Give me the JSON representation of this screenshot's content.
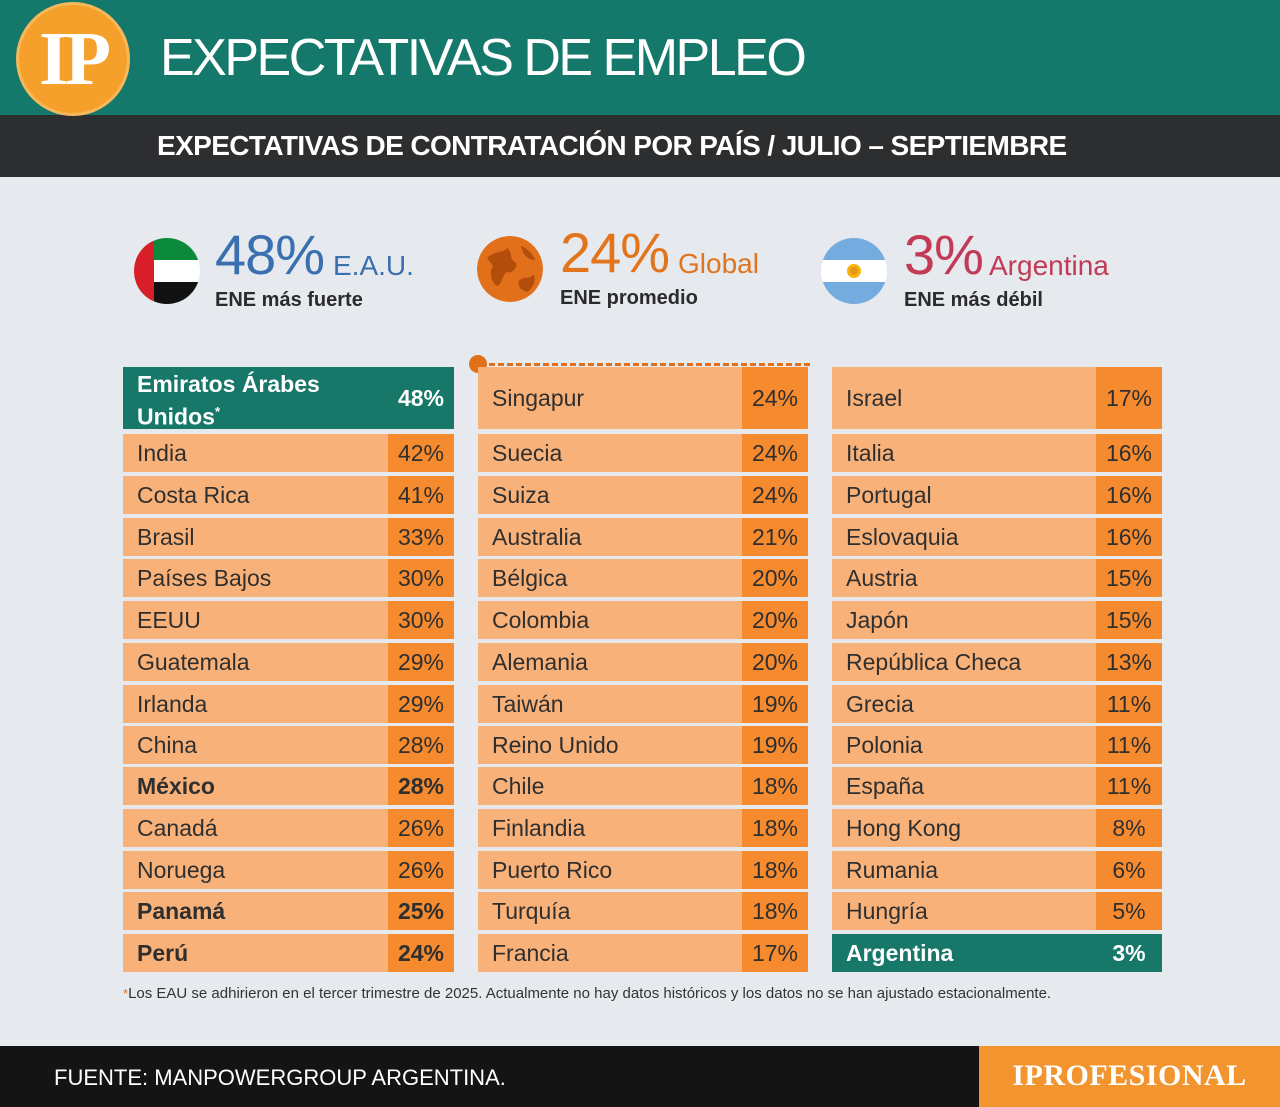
{
  "header": {
    "logo": "IP",
    "title": "EXPECTATIVAS DE EMPLEO",
    "subtitle": "EXPECTATIVAS DE CONTRATACIÓN POR PAÍS / JULIO – SEPTIEMBRE"
  },
  "stats": [
    {
      "value": "48%",
      "name": "E.A.U.",
      "desc": "ENE más fuerte",
      "color": "#3a6fb0",
      "icon": "uae-flag-icon"
    },
    {
      "value": "24%",
      "name": "Global",
      "desc": "ENE promedio",
      "color": "#e2741c",
      "icon": "globe-icon"
    },
    {
      "value": "3%",
      "name": "Argentina",
      "desc": "ENE más débil",
      "color": "#c23a55",
      "icon": "argentina-flag-icon"
    }
  ],
  "chart_data": {
    "type": "table",
    "columns": [
      [
        {
          "country": "Emiratos Árabes Unidos",
          "sup": "*",
          "value": "48%"
        },
        {
          "country": "India",
          "value": "42%"
        },
        {
          "country": "Costa Rica",
          "value": "41%"
        },
        {
          "country": "Brasil",
          "value": "33%"
        },
        {
          "country": "Países Bajos",
          "value": "30%"
        },
        {
          "country": "EEUU",
          "value": "30%"
        },
        {
          "country": "Guatemala",
          "value": "29%"
        },
        {
          "country": "Irlanda",
          "value": "29%"
        },
        {
          "country": "China",
          "value": "28%"
        },
        {
          "country": "México",
          "value": "28%"
        },
        {
          "country": "Canadá",
          "value": "26%"
        },
        {
          "country": "Noruega",
          "value": "26%"
        },
        {
          "country": "Panamá",
          "value": "25%"
        },
        {
          "country": "Perú",
          "value": "24%"
        }
      ],
      [
        {
          "country": "Singapur",
          "value": "24%"
        },
        {
          "country": "Suecia",
          "value": "24%"
        },
        {
          "country": "Suiza",
          "value": "24%"
        },
        {
          "country": "Australia",
          "value": "21%"
        },
        {
          "country": "Bélgica",
          "value": "20%"
        },
        {
          "country": "Colombia",
          "value": "20%"
        },
        {
          "country": "Alemania",
          "value": "20%"
        },
        {
          "country": "Taiwán",
          "value": "19%"
        },
        {
          "country": "Reino Unido",
          "value": "19%"
        },
        {
          "country": "Chile",
          "value": "18%"
        },
        {
          "country": "Finlandia",
          "value": "18%"
        },
        {
          "country": "Puerto Rico",
          "value": "18%"
        },
        {
          "country": "Turquía",
          "value": "18%"
        },
        {
          "country": "Francia",
          "value": "17%"
        }
      ],
      [
        {
          "country": "Israel",
          "value": "17%"
        },
        {
          "country": "Italia",
          "value": "16%"
        },
        {
          "country": "Portugal",
          "value": "16%"
        },
        {
          "country": "Eslovaquia",
          "value": "16%"
        },
        {
          "country": "Austria",
          "value": "15%"
        },
        {
          "country": "Japón",
          "value": "15%"
        },
        {
          "country": "República Checa",
          "value": "13%"
        },
        {
          "country": "Grecia",
          "value": "11%"
        },
        {
          "country": "Polonia",
          "value": "11%"
        },
        {
          "country": "España",
          "value": "11%"
        },
        {
          "country": "Hong Kong",
          "value": "8%"
        },
        {
          "country": "Rumania",
          "value": "6%"
        },
        {
          "country": "Hungría",
          "value": "5%"
        },
        {
          "country": "Argentina",
          "value": "3%"
        }
      ]
    ],
    "highlighted": [
      "Emiratos Árabes Unidos",
      "Argentina"
    ],
    "bold": [
      "México",
      "Panamá",
      "Perú"
    ],
    "global_marker_before": "Singapur"
  },
  "note": {
    "star": "*",
    "text": "Los EAU se adhirieron en el tercer trimestre de 2025. Actualmente no hay datos históricos y los datos no se han ajustado estacionalmente."
  },
  "footer": {
    "source": "FUENTE: MANPOWERGROUP ARGENTINA.",
    "brand": "IPROFESIONAL"
  },
  "colors": {
    "teal": "#17786a",
    "orange": "#f58a2e",
    "light_orange": "#f8b179",
    "dark": "#2d2e30"
  }
}
